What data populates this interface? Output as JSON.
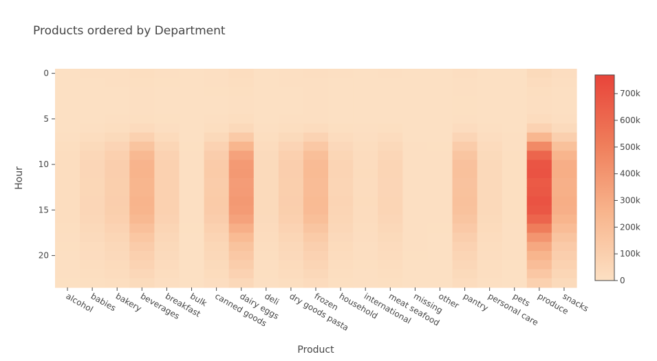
{
  "chart_data": {
    "type": "heatmap",
    "title": "Products ordered by Department",
    "xlabel": "Product",
    "ylabel": "Hour",
    "x": [
      "alcohol",
      "babies",
      "bakery",
      "beverages",
      "breakfast",
      "bulk",
      "canned goods",
      "dairy eggs",
      "deli",
      "dry goods pasta",
      "frozen",
      "household",
      "international",
      "meat seafood",
      "missing",
      "other",
      "pantry",
      "personal care",
      "pets",
      "produce",
      "snacks"
    ],
    "y": [
      0,
      1,
      2,
      3,
      4,
      5,
      6,
      7,
      8,
      9,
      10,
      11,
      12,
      13,
      14,
      15,
      16,
      17,
      18,
      19,
      20,
      21,
      22,
      23
    ],
    "y_ticks": [
      0,
      5,
      10,
      15,
      20
    ],
    "y_reversed": true,
    "hour_profile": [
      0.05,
      0.03,
      0.02,
      0.015,
      0.015,
      0.03,
      0.11,
      0.33,
      0.62,
      0.85,
      0.95,
      0.96,
      0.92,
      0.93,
      0.96,
      0.94,
      0.85,
      0.7,
      0.55,
      0.43,
      0.35,
      0.28,
      0.2,
      0.12
    ],
    "department_peaks": {
      "alcohol": 20000,
      "babies": 60000,
      "bakery": 110000,
      "beverages": 270000,
      "breakfast": 95000,
      "bulk": 4000,
      "canned goods": 130000,
      "dairy eggs": 400000,
      "deli": 40000,
      "dry goods pasta": 110000,
      "frozen": 230000,
      "household": 72000,
      "international": 27000,
      "meat seafood": 68000,
      "missing": 7000,
      "other": 4000,
      "pantry": 190000,
      "personal care": 45000,
      "pets": 9000,
      "produce": 730000,
      "snacks": 300000
    },
    "colorbar": {
      "min": 0,
      "max": 770000,
      "ticks": [
        0,
        100000,
        200000,
        300000,
        400000,
        500000,
        600000,
        700000
      ],
      "tick_labels": [
        "0",
        "100k",
        "200k",
        "300k",
        "400k",
        "500k",
        "600k",
        "700k"
      ]
    },
    "colorscale": [
      [
        0,
        "#fce0c3"
      ],
      [
        0.33,
        "#f8b58d"
      ],
      [
        0.66,
        "#ef7e5b"
      ],
      [
        1,
        "#e8443a"
      ]
    ],
    "grid": false
  }
}
